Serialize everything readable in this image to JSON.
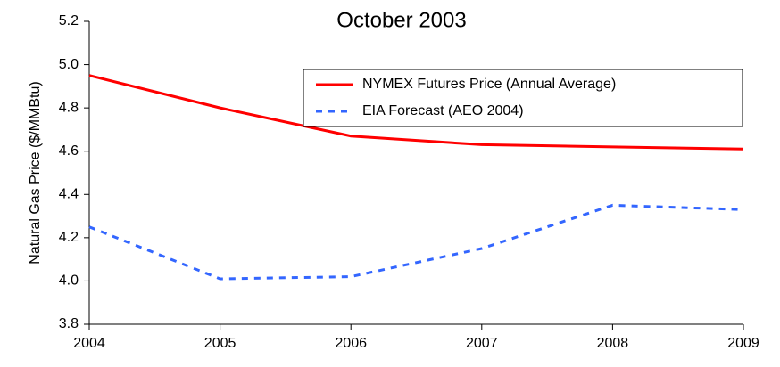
{
  "chart_data": {
    "type": "line",
    "title": "October 2003",
    "y_label": "Natural Gas Price ($/MMBtu)",
    "x": [
      2004,
      2005,
      2006,
      2007,
      2008,
      2009
    ],
    "series": [
      {
        "name": "NYMEX Futures Price (Annual Average)",
        "color": "#ff0000",
        "linestyle": "solid",
        "values": [
          4.95,
          4.8,
          4.67,
          4.63,
          4.62,
          4.61
        ]
      },
      {
        "name": "EIA Forecast (AEO 2004)",
        "color": "#3366ff",
        "linestyle": "dashed",
        "values": [
          4.25,
          4.01,
          4.02,
          4.15,
          4.35,
          4.33
        ]
      }
    ],
    "xlim": [
      2004,
      2009
    ],
    "xticks": [
      2004,
      2005,
      2006,
      2007,
      2008,
      2009
    ],
    "ylim": [
      3.8,
      5.2
    ],
    "yticks": [
      3.8,
      {
        "value": 4,
        "label": "4.0"
      },
      4.2,
      4.4,
      4.6,
      4.8,
      {
        "value": 5,
        "label": "5.0"
      },
      5.2
    ],
    "grid": false,
    "legend": "upper right"
  }
}
